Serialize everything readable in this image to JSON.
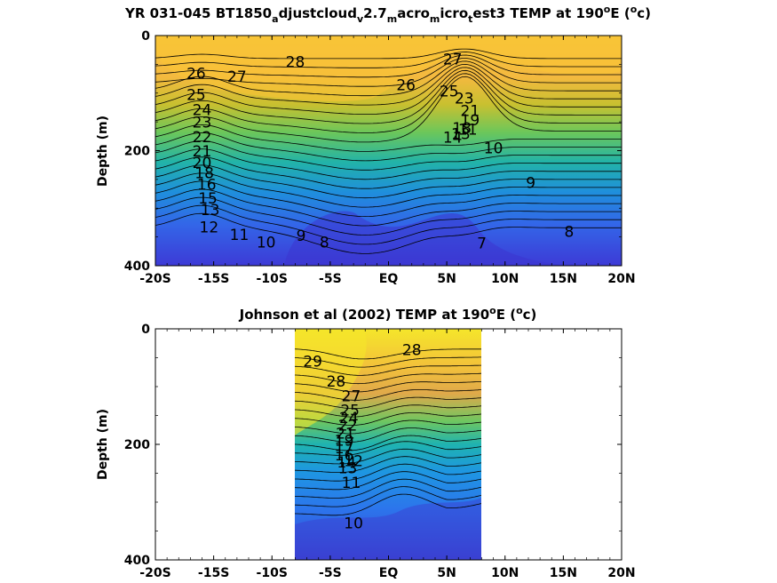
{
  "chart_data": [
    {
      "type": "contour",
      "title_parts": [
        "YR 031-045 BT1850",
        "a",
        "djustcloud",
        "v",
        "2.7",
        "m",
        "acro",
        "m",
        "icro",
        "t",
        "est3 TEMP at 190",
        "o",
        "E (",
        "o",
        "c)"
      ],
      "ylabel": "Depth (m)",
      "ylim": [
        0,
        400
      ],
      "y_ticks": [
        "0",
        "200",
        "400"
      ],
      "x_ticks": [
        "-20S",
        "-15S",
        "-10S",
        "-5S",
        "EQ",
        "5N",
        "10N",
        "15N",
        "20N"
      ],
      "contour_labels": [
        {
          "text": "28",
          "lat": -8,
          "depth": 55
        },
        {
          "text": "27",
          "lat": -13,
          "depth": 80
        },
        {
          "text": "26",
          "lat": -16.5,
          "depth": 75
        },
        {
          "text": "25",
          "lat": -16.5,
          "depth": 112
        },
        {
          "text": "24",
          "lat": -16,
          "depth": 138
        },
        {
          "text": "23",
          "lat": -16,
          "depth": 160
        },
        {
          "text": "22",
          "lat": -16,
          "depth": 185
        },
        {
          "text": "21",
          "lat": -16,
          "depth": 210
        },
        {
          "text": "20",
          "lat": -16,
          "depth": 230
        },
        {
          "text": "18",
          "lat": -15.8,
          "depth": 248
        },
        {
          "text": "16",
          "lat": -15.6,
          "depth": 268
        },
        {
          "text": "15",
          "lat": -15.5,
          "depth": 292
        },
        {
          "text": "13",
          "lat": -15.3,
          "depth": 312
        },
        {
          "text": "12",
          "lat": -15.4,
          "depth": 342
        },
        {
          "text": "11",
          "lat": -12.8,
          "depth": 355
        },
        {
          "text": "10",
          "lat": -10.5,
          "depth": 368
        },
        {
          "text": "9",
          "lat": -7.5,
          "depth": 357
        },
        {
          "text": "8",
          "lat": -5.5,
          "depth": 368
        },
        {
          "text": "27",
          "lat": 5.5,
          "depth": 50
        },
        {
          "text": "26",
          "lat": 1.5,
          "depth": 95
        },
        {
          "text": "25",
          "lat": 5.2,
          "depth": 106
        },
        {
          "text": "23",
          "lat": 6.5,
          "depth": 118
        },
        {
          "text": "21",
          "lat": 7,
          "depth": 140
        },
        {
          "text": "19",
          "lat": 7,
          "depth": 156
        },
        {
          "text": "18",
          "lat": 6.3,
          "depth": 170
        },
        {
          "text": "14",
          "lat": 5.5,
          "depth": 186
        },
        {
          "text": "13",
          "lat": 6.2,
          "depth": 180
        },
        {
          "text": "11",
          "lat": 6.8,
          "depth": 172
        },
        {
          "text": "10",
          "lat": 9,
          "depth": 205
        },
        {
          "text": "9",
          "lat": 12.2,
          "depth": 265
        },
        {
          "text": "8",
          "lat": 15.5,
          "depth": 350
        },
        {
          "text": "7",
          "lat": 8,
          "depth": 370
        }
      ]
    },
    {
      "type": "contour",
      "title_parts": [
        "Johnson et al (2002) TEMP at 190",
        "o",
        "E (",
        "o",
        "c)"
      ],
      "ylabel": "Depth (m)",
      "ylim": [
        0,
        400
      ],
      "xlim_data": [
        -8,
        8
      ],
      "y_ticks": [
        "0",
        "200",
        "400"
      ],
      "x_ticks": [
        "-20S",
        "-15S",
        "-10S",
        "-5S",
        "EQ",
        "5N",
        "10N",
        "15N",
        "20N"
      ],
      "contour_labels": [
        {
          "text": "29",
          "lat": -6.5,
          "depth": 65
        },
        {
          "text": "28",
          "lat": 2,
          "depth": 45
        },
        {
          "text": "28",
          "lat": -4.5,
          "depth": 100
        },
        {
          "text": "27",
          "lat": -3.2,
          "depth": 125
        },
        {
          "text": "25",
          "lat": -3.3,
          "depth": 150
        },
        {
          "text": "24",
          "lat": -3.4,
          "depth": 163
        },
        {
          "text": "22",
          "lat": -3.5,
          "depth": 176
        },
        {
          "text": "21",
          "lat": -3.7,
          "depth": 190
        },
        {
          "text": "19",
          "lat": -3.8,
          "depth": 202
        },
        {
          "text": "17",
          "lat": -3.8,
          "depth": 215
        },
        {
          "text": "16",
          "lat": -3.8,
          "depth": 228
        },
        {
          "text": "14",
          "lat": -3.6,
          "depth": 240
        },
        {
          "text": "13",
          "lat": -3.5,
          "depth": 250
        },
        {
          "text": "12",
          "lat": -3.0,
          "depth": 238
        },
        {
          "text": "11",
          "lat": -3.2,
          "depth": 275
        },
        {
          "text": "10",
          "lat": -3.0,
          "depth": 345
        }
      ]
    }
  ]
}
